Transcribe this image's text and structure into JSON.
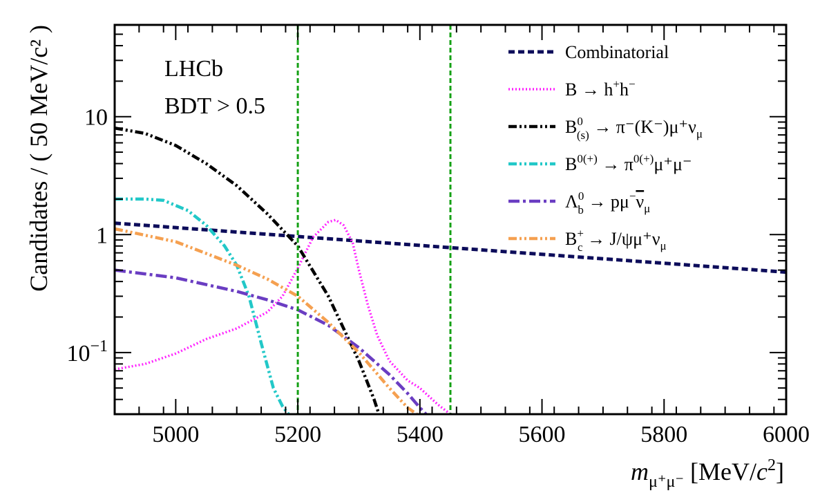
{
  "chart_data": {
    "type": "line",
    "xlabel": {
      "pre": "m",
      "sub": "μ⁺μ⁻",
      "unit": " [MeV/c",
      "sup": "2",
      "close": "]"
    },
    "ylabel": "Candidates / ( 50 MeV/c² )",
    "xlim": [
      4900,
      6000
    ],
    "ylim": [
      0.03,
      60
    ],
    "yscale": "log",
    "xticks": [
      5000,
      5200,
      5400,
      5600,
      5800,
      6000
    ],
    "yticks": [
      {
        "value": 0.1,
        "base": "10",
        "exp": "−1"
      },
      {
        "value": 1,
        "base": "1",
        "exp": ""
      },
      {
        "value": 10,
        "base": "10",
        "exp": ""
      }
    ],
    "annotations": [
      "LHCb",
      "BDT > 0.5"
    ],
    "vlines": [
      5200,
      5450
    ],
    "vline_color": "#14a014",
    "legend_position": "top-right",
    "series": [
      {
        "key": "combinatorial",
        "legend": {
          "main": "Combinatorial"
        },
        "color": "#0c0c5a",
        "dash": "9,5",
        "width": 5,
        "x": [
          4900,
          6000
        ],
        "y": [
          1.25,
          0.48
        ]
      },
      {
        "key": "bhh",
        "legend": {
          "main": "B → h",
          "sup1": "+",
          "mid": "h",
          "sup2": "−"
        },
        "color": "#ff22ff",
        "dash": "2,3",
        "width": 3.5,
        "x": [
          4900,
          4950,
          5000,
          5050,
          5100,
          5150,
          5175,
          5200,
          5225,
          5250,
          5262,
          5275,
          5290,
          5300,
          5315,
          5330,
          5350,
          5380,
          5400,
          5430,
          5450
        ],
        "y": [
          0.072,
          0.08,
          0.098,
          0.13,
          0.16,
          0.22,
          0.3,
          0.52,
          0.95,
          1.28,
          1.33,
          1.2,
          0.85,
          0.5,
          0.25,
          0.14,
          0.085,
          0.058,
          0.05,
          0.036,
          0.03
        ]
      },
      {
        "key": "bpimunu",
        "legend": {
          "main": "B",
          "sup": "0",
          "sub": "(s)",
          "rest": " → π⁻(K⁻)μ⁺ν",
          "sub2": "μ"
        },
        "color": "#000000",
        "dash": "12,4,3,4,3,4",
        "width": 4.5,
        "x": [
          4900,
          4950,
          5000,
          5050,
          5100,
          5150,
          5200,
          5250,
          5300,
          5325,
          5333
        ],
        "y": [
          8,
          7.2,
          5.7,
          4.0,
          2.6,
          1.5,
          0.8,
          0.3,
          0.085,
          0.04,
          0.03
        ]
      },
      {
        "key": "bpimumu",
        "legend": {
          "main": "B",
          "sup": "0(+)",
          "rest": " → π",
          "sup2": "0(+)",
          "rest2": "μ⁺μ⁻"
        },
        "color": "#22c8c8",
        "dash": "12,4,3,4,3,4",
        "width": 4.5,
        "x": [
          4900,
          4950,
          4980,
          5020,
          5050,
          5080,
          5100,
          5120,
          5140,
          5160,
          5175,
          5185
        ],
        "y": [
          2.0,
          2.0,
          1.95,
          1.6,
          1.2,
          0.8,
          0.55,
          0.3,
          0.12,
          0.05,
          0.035,
          0.03
        ]
      },
      {
        "key": "lambdab",
        "legend": {
          "main": "Λ",
          "sup": "0",
          "sub": "b",
          "rest": " → pμ",
          "sup2": "−",
          "nubar": "ν",
          "sub2": "μ"
        },
        "color": "#6a3dc2",
        "dash": "16,5,4,5",
        "width": 4.5,
        "x": [
          4900,
          5000,
          5100,
          5150,
          5200,
          5250,
          5300,
          5350,
          5380,
          5400,
          5410
        ],
        "y": [
          0.5,
          0.43,
          0.33,
          0.28,
          0.23,
          0.17,
          0.11,
          0.065,
          0.045,
          0.034,
          0.03
        ]
      },
      {
        "key": "bc",
        "legend": {
          "main": "B",
          "sup": "+",
          "sub": "c",
          "rest": " → J/ψμ⁺ν",
          "sub2": "μ"
        },
        "color": "#f5a050",
        "dash": "12,4,3,4,3,4",
        "width": 4.5,
        "x": [
          4900,
          5000,
          5100,
          5150,
          5200,
          5250,
          5300,
          5350,
          5380,
          5395
        ],
        "y": [
          1.12,
          0.87,
          0.55,
          0.42,
          0.3,
          0.18,
          0.1,
          0.05,
          0.034,
          0.03
        ]
      }
    ]
  }
}
